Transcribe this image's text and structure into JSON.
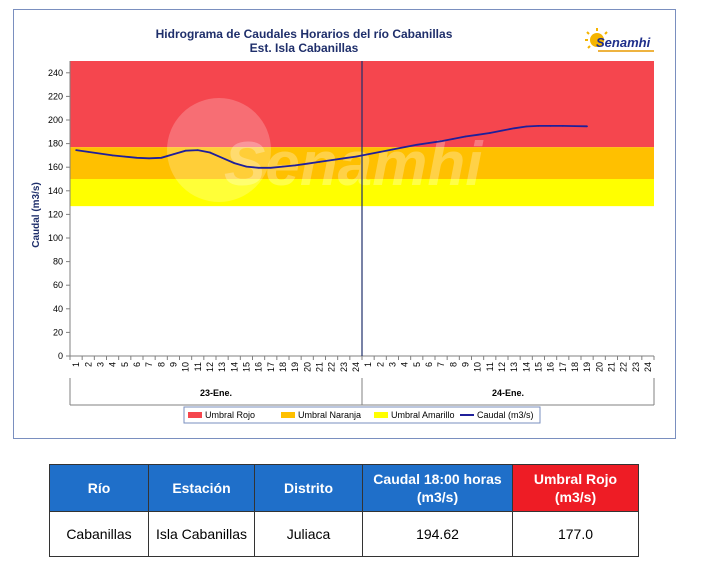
{
  "chart_data": {
    "type": "line",
    "title": "Hidrograma de Caudales Horarios del río Cabanillas",
    "subtitle": "Est. Isla Cabanillas",
    "ylabel": "Caudal  (m3/s)",
    "ylim": [
      0,
      250
    ],
    "yticks": [
      0,
      20,
      40,
      60,
      80,
      100,
      120,
      140,
      160,
      180,
      200,
      220,
      240
    ],
    "x_tick_labels": [
      "1",
      "2",
      "3",
      "4",
      "5",
      "6",
      "7",
      "8",
      "9",
      "10",
      "11",
      "12",
      "13",
      "14",
      "15",
      "16",
      "17",
      "18",
      "19",
      "20",
      "21",
      "22",
      "23",
      "24",
      "1",
      "2",
      "3",
      "4",
      "5",
      "6",
      "7",
      "8",
      "9",
      "10",
      "11",
      "12",
      "13",
      "14",
      "15",
      "16",
      "17",
      "18",
      "19",
      "20",
      "21",
      "22",
      "23",
      "24"
    ],
    "day_groups": [
      {
        "label": "23-Ene.",
        "start": 0,
        "end": 24
      },
      {
        "label": "24-Ene.",
        "start": 24,
        "end": 48
      }
    ],
    "thresholds": [
      {
        "name": "Umbral Rojo",
        "from": 177,
        "to": 250,
        "color": "#f5464e"
      },
      {
        "name": "Umbral Naranja",
        "from": 150,
        "to": 177,
        "color": "#ffc000"
      },
      {
        "name": "Umbral Amarillo",
        "from": 127,
        "to": 150,
        "color": "#ffff00"
      }
    ],
    "series": [
      {
        "name": "Caudal (m3/s)",
        "color": "#1f1f9a",
        "x": [
          1,
          2,
          3,
          4,
          5,
          6,
          7,
          8,
          9,
          10,
          11,
          12,
          13,
          14,
          15,
          16,
          17,
          18,
          19,
          20,
          21,
          22,
          23,
          24,
          25,
          26,
          27,
          28,
          29,
          30,
          31,
          32,
          33,
          34,
          35,
          36,
          37,
          38,
          39,
          40,
          41,
          42,
          43
        ],
        "values": [
          174.5,
          173.0,
          171.5,
          170.0,
          169.0,
          168.0,
          167.5,
          168.0,
          171.0,
          174.0,
          174.5,
          172.5,
          168.0,
          163.5,
          160.5,
          159.5,
          159.5,
          160.5,
          161.5,
          163.0,
          164.5,
          166.0,
          167.5,
          169.0,
          171.0,
          173.0,
          175.0,
          177.0,
          179.0,
          180.5,
          182.0,
          184.0,
          186.0,
          187.5,
          189.0,
          191.0,
          193.0,
          194.5,
          195.0,
          195.0,
          195.0,
          194.8,
          194.62
        ]
      }
    ],
    "legend_position": "bottom",
    "grid": false
  },
  "logo": {
    "text": "Senamhi",
    "watermark": "Senamhi"
  },
  "table": {
    "headers": [
      "Río",
      "Estación",
      "Distrito",
      "Caudal  18:00 horas (m3/s)",
      "Umbral Rojo (m3/s)"
    ],
    "rows": [
      [
        "Cabanillas",
        "Isla Cabanillas",
        "Juliaca",
        "194.62",
        "177.0"
      ]
    ]
  },
  "colors": {
    "header_blue": "#1f6fc9",
    "header_red": "#ee1c25",
    "line": "#1f1f9a",
    "title": "#1f2f6b"
  }
}
